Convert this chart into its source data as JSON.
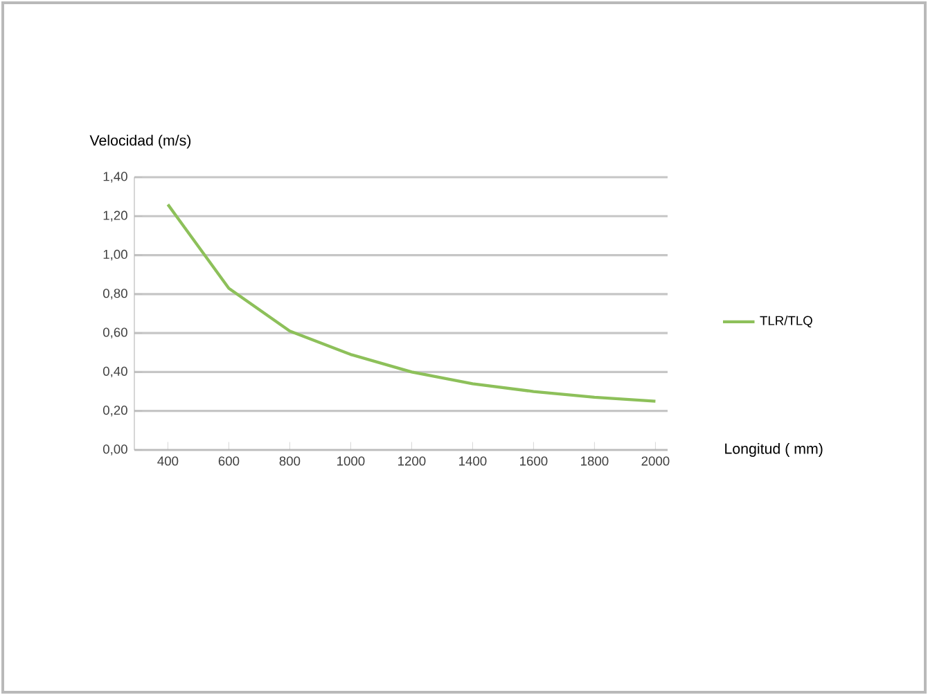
{
  "chart_data": {
    "type": "line",
    "xlabel": "Longitud ( mm)",
    "ylabel": "Velocidad (m/s)",
    "categories": [
      "400",
      "600",
      "800",
      "1000",
      "1200",
      "1400",
      "1600",
      "1800",
      "2000"
    ],
    "series": [
      {
        "name": "TLR/TLQ",
        "color": "#8dc05a",
        "values": [
          1.26,
          0.83,
          0.61,
          0.49,
          0.4,
          0.34,
          0.3,
          0.27,
          0.25
        ]
      }
    ],
    "ylim": [
      0,
      1.4
    ],
    "yticks": [
      {
        "value": 0,
        "label": "0,00"
      },
      {
        "value": 0.2,
        "label": "0,20"
      },
      {
        "value": 0.4,
        "label": "0,40"
      },
      {
        "value": 0.6,
        "label": "0,60"
      },
      {
        "value": 0.8,
        "label": "0,80"
      },
      {
        "value": 1.0,
        "label": "1,00"
      },
      {
        "value": 1.2,
        "label": "1,20"
      },
      {
        "value": 1.4,
        "label": "1,40"
      }
    ],
    "grid": "y",
    "legend": "right",
    "marker": "none",
    "line_style": "solid"
  }
}
